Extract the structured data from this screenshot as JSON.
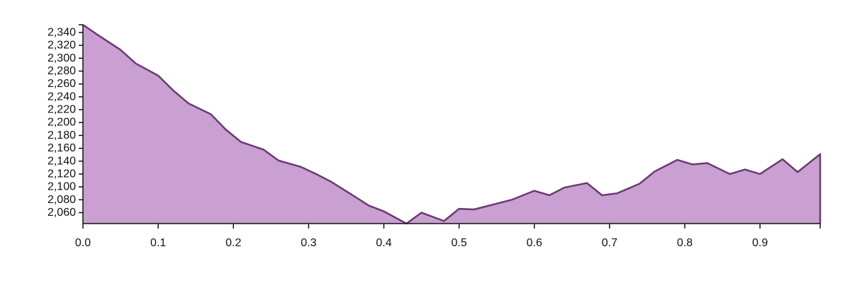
{
  "chart_data": {
    "type": "area",
    "title": "",
    "xlabel": "",
    "ylabel": "",
    "xlim": [
      0,
      0.98
    ],
    "ylim": [
      2043,
      2352
    ],
    "grid": false,
    "legend": "none",
    "colors": {
      "fill": "#c9a0d1",
      "stroke": "#6a3a72",
      "axis": "#111111"
    },
    "x_ticks": [
      {
        "value": 0.0,
        "label": "0.0"
      },
      {
        "value": 0.1,
        "label": "0.1"
      },
      {
        "value": 0.2,
        "label": "0.2"
      },
      {
        "value": 0.3,
        "label": "0.3"
      },
      {
        "value": 0.4,
        "label": "0.4"
      },
      {
        "value": 0.5,
        "label": "0.5"
      },
      {
        "value": 0.6,
        "label": "0.6"
      },
      {
        "value": 0.7,
        "label": "0.7"
      },
      {
        "value": 0.8,
        "label": "0.8"
      },
      {
        "value": 0.9,
        "label": "0.9"
      }
    ],
    "y_ticks": [
      {
        "value": 2060,
        "label": "2,060"
      },
      {
        "value": 2080,
        "label": "2,080"
      },
      {
        "value": 2100,
        "label": "2,100"
      },
      {
        "value": 2120,
        "label": "2,120"
      },
      {
        "value": 2140,
        "label": "2,140"
      },
      {
        "value": 2160,
        "label": "2,160"
      },
      {
        "value": 2180,
        "label": "2,180"
      },
      {
        "value": 2200,
        "label": "2,200"
      },
      {
        "value": 2220,
        "label": "2,220"
      },
      {
        "value": 2240,
        "label": "2,240"
      },
      {
        "value": 2260,
        "label": "2,260"
      },
      {
        "value": 2280,
        "label": "2,280"
      },
      {
        "value": 2300,
        "label": "2,300"
      },
      {
        "value": 2320,
        "label": "2,320"
      },
      {
        "value": 2340,
        "label": "2,340"
      }
    ],
    "x": [
      0.0,
      0.02,
      0.05,
      0.07,
      0.1,
      0.12,
      0.14,
      0.17,
      0.19,
      0.21,
      0.24,
      0.26,
      0.29,
      0.31,
      0.33,
      0.36,
      0.38,
      0.4,
      0.43,
      0.45,
      0.48,
      0.5,
      0.52,
      0.55,
      0.57,
      0.6,
      0.62,
      0.64,
      0.67,
      0.69,
      0.71,
      0.74,
      0.76,
      0.79,
      0.81,
      0.83,
      0.86,
      0.88,
      0.9,
      0.93,
      0.95,
      0.98
    ],
    "y": [
      2352,
      2336,
      2313,
      2292,
      2273,
      2250,
      2230,
      2213,
      2189,
      2170,
      2158,
      2141,
      2131,
      2120,
      2108,
      2086,
      2071,
      2062,
      2043,
      2060,
      2047,
      2066,
      2065,
      2074,
      2080,
      2094,
      2087,
      2099,
      2106,
      2087,
      2090,
      2105,
      2124,
      2142,
      2135,
      2137,
      2120,
      2127,
      2120,
      2143,
      2123,
      2151
    ]
  }
}
